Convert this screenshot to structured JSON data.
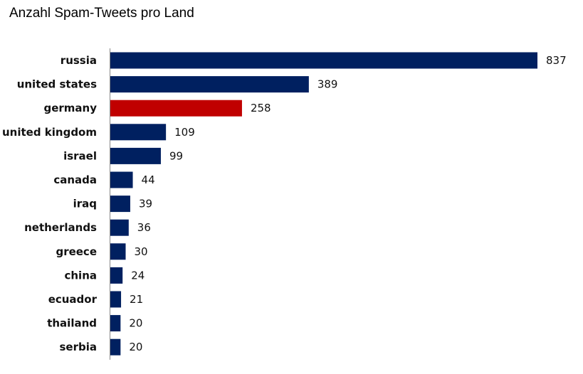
{
  "chart_data": {
    "type": "bar",
    "orientation": "horizontal",
    "title": "Anzahl Spam-Tweets pro Land",
    "xlabel": "",
    "ylabel": "",
    "grid": false,
    "categories": [
      "russia",
      "united states",
      "germany",
      "united kingdom",
      "israel",
      "canada",
      "iraq",
      "netherlands",
      "greece",
      "china",
      "ecuador",
      "thailand",
      "serbia"
    ],
    "values": [
      837,
      389,
      258,
      109,
      99,
      44,
      39,
      36,
      30,
      24,
      21,
      20,
      20
    ],
    "xlim": [
      0,
      837
    ],
    "colors": {
      "default": "#002060",
      "highlight": "#C00000"
    },
    "highlight_category": "germany"
  }
}
